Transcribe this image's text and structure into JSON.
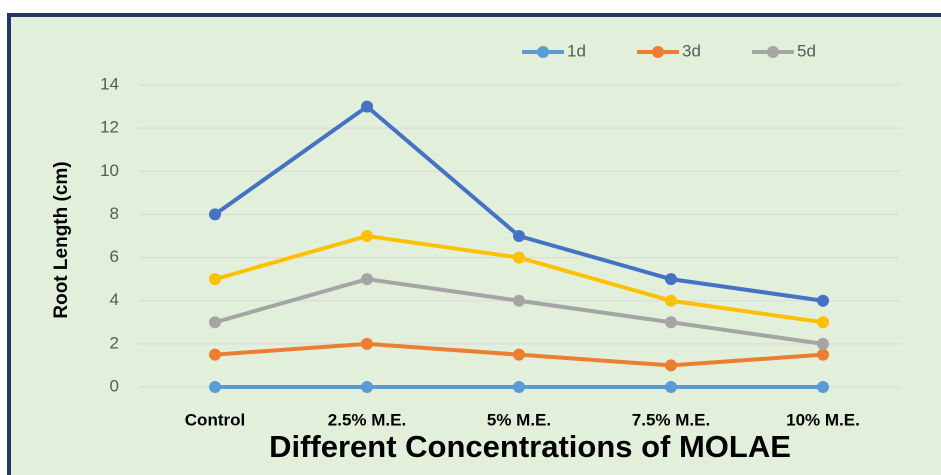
{
  "chart_data": {
    "type": "line",
    "x_label": "Different Concentrations of MOLAE",
    "y_label": "Root Length (cm)",
    "categories": [
      "Control",
      "2.5% M.E.",
      "5% M.E.",
      "7.5% M.E.",
      "10% M.E."
    ],
    "series": [
      {
        "name": "1d",
        "color": "#5b9bd5",
        "values": [
          0,
          0,
          0,
          0,
          0
        ]
      },
      {
        "name": "3d",
        "color": "#ed7d31",
        "values": [
          1.5,
          2,
          1.5,
          1,
          1.5
        ]
      },
      {
        "name": "5d",
        "color": "#a5a5a5",
        "values": [
          3,
          5,
          4,
          3,
          2
        ]
      },
      {
        "color": "#ffc000",
        "values": [
          5,
          7,
          6,
          4,
          3
        ]
      },
      {
        "color": "#4472c4",
        "values": [
          8,
          13,
          7,
          5,
          4
        ]
      }
    ],
    "ylim": [
      0,
      14
    ],
    "yticks": [
      0,
      2,
      4,
      6,
      8,
      10,
      12,
      14
    ],
    "grid": true,
    "legend": "top-right"
  }
}
